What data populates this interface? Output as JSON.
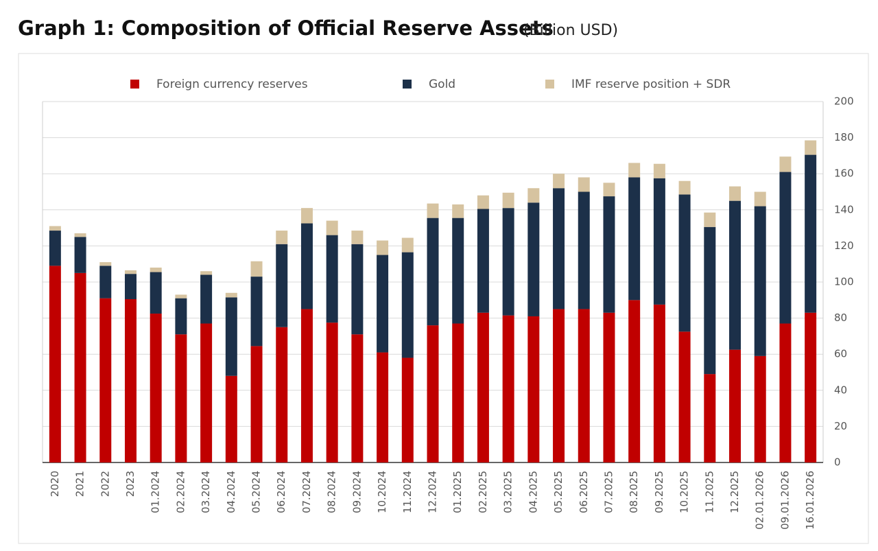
{
  "chart_data": {
    "type": "stacked-bar",
    "title": "Graph 1: Composition of Official Reserve Assets",
    "subtitle": "(Billion USD)",
    "categories": [
      "2020",
      "2021",
      "2022",
      "2023",
      "01.2024",
      "02.2024",
      "03.2024",
      "04.2024",
      "05.2024",
      "06.2024",
      "07.2024",
      "08.2024",
      "09.2024",
      "10.2024",
      "11.2024",
      "12.2024",
      "01.2025",
      "02.2025",
      "03.2025",
      "04.2025",
      "05.2025",
      "06.2025",
      "07.2025",
      "08.2025",
      "09.2025",
      "10.2025",
      "11.2025",
      "12.2025",
      "02.01.2026",
      "09.01.2026",
      "16.01.2026"
    ],
    "series": [
      {
        "name": "Foreign currency reserves",
        "color": "#c00000",
        "values": [
          109,
          105,
          91,
          90.5,
          82.5,
          71,
          77,
          48,
          64.5,
          75,
          85,
          77.5,
          71,
          61,
          58,
          76,
          77,
          83,
          81.5,
          81,
          85,
          85,
          83,
          90,
          87.5,
          72.5,
          49,
          62.5,
          59,
          77,
          83
        ]
      },
      {
        "name": "Gold",
        "color": "#1c3049",
        "values": [
          19.5,
          20,
          18,
          14,
          23,
          20,
          27,
          43.5,
          38.5,
          46,
          47.5,
          48.5,
          50,
          54,
          58.5,
          59.5,
          58.5,
          57.5,
          59.5,
          63,
          67,
          65,
          64.5,
          68,
          70,
          76,
          81.5,
          82.5,
          83,
          84,
          87.5
        ]
      },
      {
        "name": "IMF reserve position + SDR",
        "color": "#d6c3a0",
        "values": [
          2.5,
          2,
          2,
          2,
          2.5,
          2,
          2,
          2.5,
          8.5,
          7.5,
          8.5,
          8,
          7.5,
          8,
          8,
          8,
          7.5,
          7.5,
          8.5,
          8,
          8,
          8,
          7.5,
          8,
          8,
          7.5,
          8,
          8,
          8,
          8.5,
          8
        ]
      }
    ],
    "ylim": [
      0,
      200
    ],
    "yticks": [
      0,
      20,
      40,
      60,
      80,
      100,
      120,
      140,
      160,
      180,
      200
    ],
    "grid": true,
    "y_axis_side": "right",
    "legend": "top"
  }
}
